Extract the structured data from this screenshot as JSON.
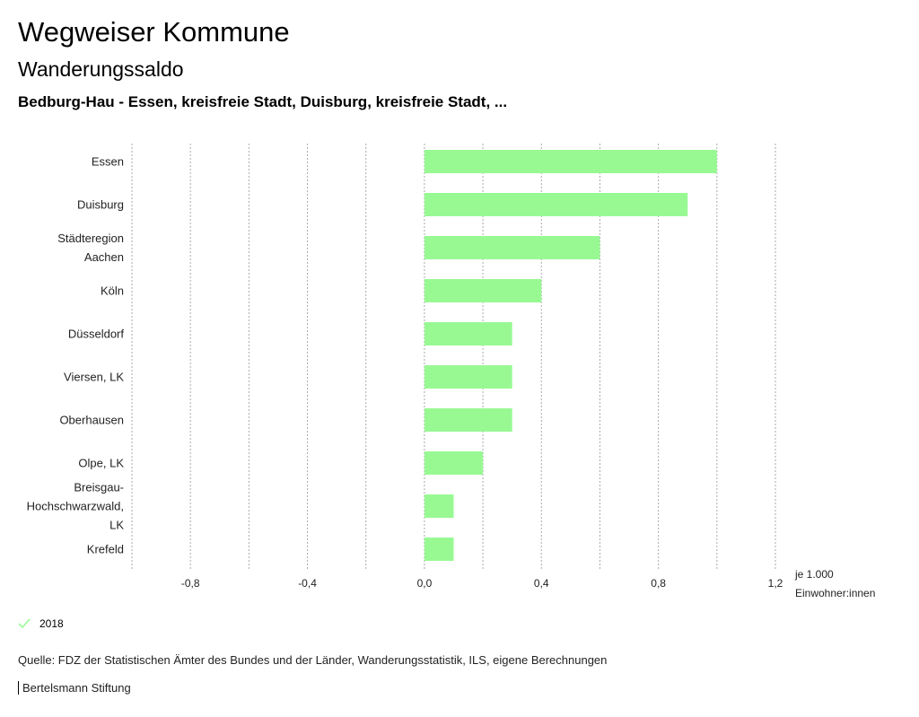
{
  "header": {
    "title": "Wegweiser Kommune",
    "subtitle": "Wanderungssaldo",
    "selection": "Bedburg-Hau - Essen, kreisfreie Stadt, Duisburg, kreisfreie Stadt, ..."
  },
  "chart_data": {
    "type": "bar",
    "orientation": "horizontal",
    "categories": [
      "Essen",
      "Duisburg",
      "Städteregion Aachen",
      "Köln",
      "Düsseldorf",
      "Viersen, LK",
      "Oberhausen",
      "Olpe, LK",
      "Breisgau-Hochschwarzwald, LK",
      "Krefeld"
    ],
    "series": [
      {
        "name": "2018",
        "values": [
          1.0,
          0.9,
          0.6,
          0.4,
          0.3,
          0.3,
          0.3,
          0.2,
          0.1,
          0.1
        ],
        "color": "#98f993"
      }
    ],
    "xlim": [
      -1.0,
      1.2
    ],
    "xticks": [
      -0.8,
      -0.4,
      0.0,
      0.4,
      0.8,
      1.2
    ],
    "xtick_labels": [
      "-0,8",
      "-0,4",
      "0,0",
      "0,4",
      "0,8",
      "1,2"
    ],
    "gridlines": [
      -1.0,
      -0.8,
      -0.6,
      -0.4,
      -0.2,
      0.0,
      0.2,
      0.4,
      0.6,
      0.8,
      1.0,
      1.2
    ],
    "xlabel_line1": "je 1.000",
    "xlabel_line2": "Einwohner:innen",
    "legend": "bottom-left",
    "grid": true
  },
  "legend": {
    "label": "2018",
    "color": "#98f993"
  },
  "footer": {
    "source": "Quelle: FDZ der Statistischen Ämter des Bundes und der Länder, Wanderungsstatistik, ILS, eigene Berechnungen",
    "brand": "Bertelsmann Stiftung"
  }
}
